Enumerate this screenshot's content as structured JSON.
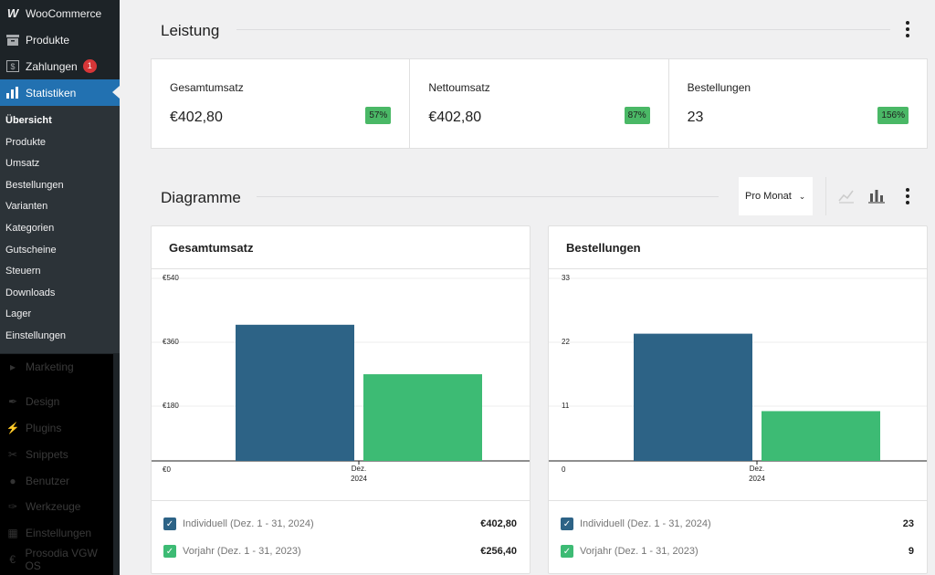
{
  "sidebar": {
    "top": [
      {
        "label": "WooCommerce",
        "icon": "woocommerce-icon"
      },
      {
        "label": "Produkte",
        "icon": "archive-icon"
      },
      {
        "label": "Zahlungen",
        "icon": "payment-icon",
        "badge": "1"
      },
      {
        "label": "Statistiken",
        "icon": "bar-chart-icon",
        "active": true
      }
    ],
    "submenu": [
      "Übersicht",
      "Produkte",
      "Umsatz",
      "Bestellungen",
      "Varianten",
      "Kategorien",
      "Gutscheine",
      "Steuern",
      "Downloads",
      "Lager",
      "Einstellungen"
    ],
    "current": "Übersicht",
    "lower": [
      {
        "label": "Marketing",
        "icon": "megaphone-icon"
      },
      {
        "label": "Design",
        "icon": "paintbrush-icon"
      },
      {
        "label": "Plugins",
        "icon": "plugin-icon"
      },
      {
        "label": "Snippets",
        "icon": "scissors-icon"
      },
      {
        "label": "Benutzer",
        "icon": "user-icon"
      },
      {
        "label": "Werkzeuge",
        "icon": "wrench-icon"
      },
      {
        "label": "Einstellungen",
        "icon": "settings-icon"
      },
      {
        "label": "Prosodia VGW OS",
        "icon": "euro-icon"
      }
    ]
  },
  "performance": {
    "title": "Leistung",
    "cards": [
      {
        "label": "Gesamtumsatz",
        "value": "€402,80",
        "delta": "57%"
      },
      {
        "label": "Nettoumsatz",
        "value": "€402,80",
        "delta": "87%"
      },
      {
        "label": "Bestellungen",
        "value": "23",
        "delta": "156%"
      }
    ]
  },
  "charts_section": {
    "title": "Diagramme",
    "period": "Pro Monat"
  },
  "colors": {
    "primary_series": "#2d6386",
    "previous_series": "#3dbb74",
    "admin_blue": "#2271b1",
    "sidebar_bg": "#1d2327",
    "delta_green": "#4ab866"
  },
  "chart_data": [
    {
      "type": "bar",
      "title": "Gesamtumsatz",
      "categories": [
        "Dez. 2024"
      ],
      "category_lines": [
        "Dez.",
        "2024"
      ],
      "series": [
        {
          "name": "Individuell (Dez. 1 - 31, 2024)",
          "values": [
            402.8
          ],
          "total": "€402,80",
          "color": "#2d6386"
        },
        {
          "name": "Vorjahr (Dez. 1 - 31, 2023)",
          "values": [
            256.4
          ],
          "total": "€256,40",
          "color": "#3dbb74"
        }
      ],
      "yticks": [
        0,
        180,
        360,
        540
      ],
      "ytick_labels": [
        "€0",
        "€180",
        "€360",
        "€540"
      ],
      "ylim": [
        0,
        540
      ]
    },
    {
      "type": "bar",
      "title": "Bestellungen",
      "categories": [
        "Dez. 2024"
      ],
      "category_lines": [
        "Dez.",
        "2024"
      ],
      "series": [
        {
          "name": "Individuell (Dez. 1 - 31, 2024)",
          "values": [
            23
          ],
          "total": "23",
          "color": "#2d6386"
        },
        {
          "name": "Vorjahr (Dez. 1 - 31, 2023)",
          "values": [
            9
          ],
          "total": "9",
          "color": "#3dbb74"
        }
      ],
      "yticks": [
        0,
        11,
        22,
        33
      ],
      "ytick_labels": [
        "0",
        "11",
        "22",
        "33"
      ],
      "ylim": [
        0,
        33
      ]
    }
  ]
}
